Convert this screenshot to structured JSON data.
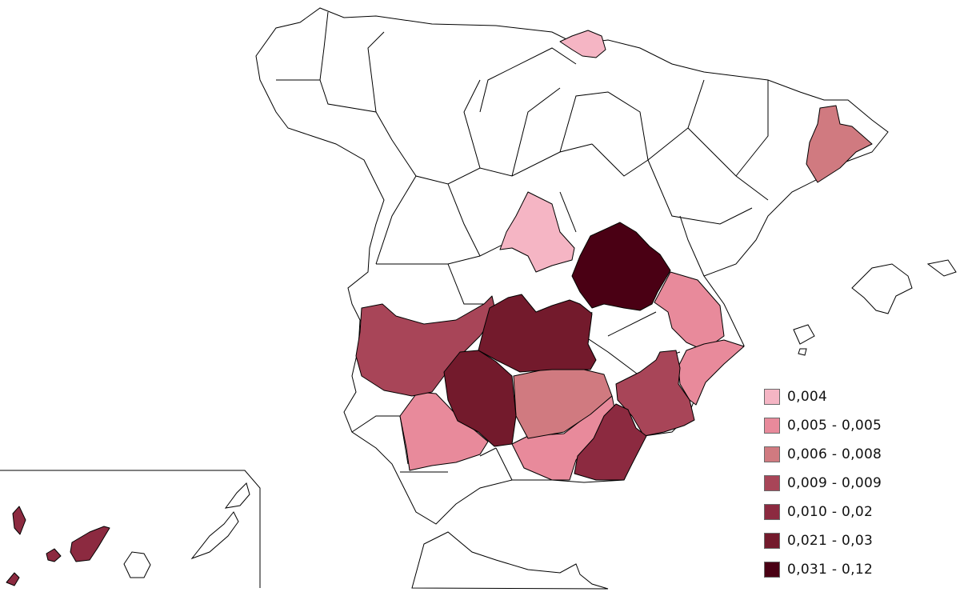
{
  "map": {
    "classes": [
      {
        "label": "0,004",
        "color": "#f5b5c4"
      },
      {
        "label": "0,005 - 0,005",
        "color": "#e88a9b"
      },
      {
        "label": "0,006 - 0,008",
        "color": "#d07a80"
      },
      {
        "label": "0,009 - 0,009",
        "color": "#a84558"
      },
      {
        "label": "0,010 - 0,02",
        "color": "#8c2a40"
      },
      {
        "label": "0,021 - 0,03",
        "color": "#731a2c"
      },
      {
        "label": "0,031 - 0,12",
        "color": "#4a0014"
      }
    ],
    "regions": [
      {
        "name": "Gipuzkoa",
        "class": 0
      },
      {
        "name": "Madrid",
        "class": 0
      },
      {
        "name": "Valencia",
        "class": 1
      },
      {
        "name": "Alicante",
        "class": 1
      },
      {
        "name": "Sevilla",
        "class": 1
      },
      {
        "name": "Granada",
        "class": 1
      },
      {
        "name": "Barcelona",
        "class": 2
      },
      {
        "name": "Jaén",
        "class": 2
      },
      {
        "name": "Badajoz",
        "class": 3
      },
      {
        "name": "Murcia",
        "class": 3
      },
      {
        "name": "Almería",
        "class": 4
      },
      {
        "name": "Santa Cruz de Tenerife",
        "class": 4
      },
      {
        "name": "Ciudad Real",
        "class": 5
      },
      {
        "name": "Córdoba",
        "class": 5
      },
      {
        "name": "Cuenca",
        "class": 6
      }
    ]
  }
}
